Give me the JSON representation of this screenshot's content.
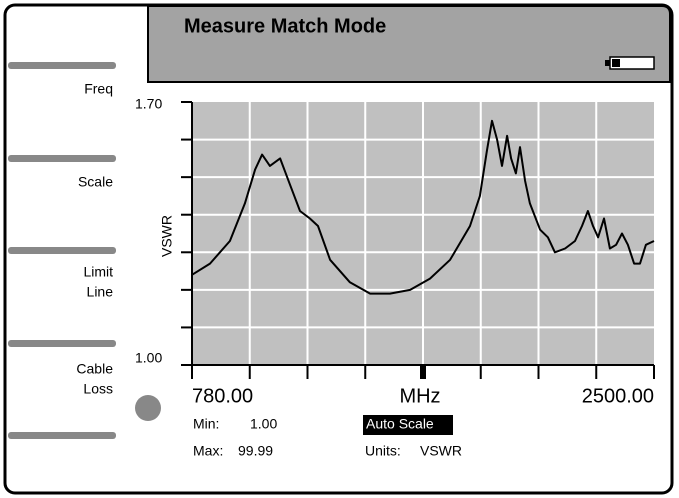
{
  "title": "Measure Match Mode",
  "softkeys": [
    [
      "Freq"
    ],
    [
      "Scale"
    ],
    [
      "Limit",
      "Line"
    ],
    [
      "Cable",
      "Loss"
    ]
  ],
  "chart_data": {
    "type": "line",
    "y_label": "VSWR",
    "x_label": "MHz",
    "xlim": [
      780,
      2500
    ],
    "xticks": [
      {
        "value": 780,
        "label": "780.00"
      },
      {
        "value": 2500,
        "label": "2500.00"
      }
    ],
    "xgrid": [
      995,
      1210,
      1425,
      1640,
      1855,
      2070,
      2285
    ],
    "ylim": [
      1.0,
      1.7
    ],
    "yticks": [
      {
        "value": 1.0,
        "label": "1.00"
      },
      {
        "value": 1.7,
        "label": "1.70"
      }
    ],
    "ygrid": [
      1.1,
      1.2,
      1.3,
      1.4,
      1.5,
      1.6
    ],
    "grid": true,
    "color": "#000000",
    "background": "#c0c0c0",
    "x": [
      780,
      847,
      921,
      977,
      1015,
      1041,
      1070,
      1108,
      1145,
      1182,
      1219,
      1249,
      1294,
      1368,
      1443,
      1517,
      1592,
      1666,
      1741,
      1815,
      1852,
      1878,
      1897,
      1916,
      1934,
      1953,
      1968,
      1986,
      2001,
      2020,
      2038,
      2076,
      2105,
      2131,
      2169,
      2206,
      2232,
      2254,
      2273,
      2292,
      2314,
      2336,
      2359,
      2381,
      2403,
      2426,
      2448,
      2470,
      2500
    ],
    "values": [
      1.24,
      1.27,
      1.33,
      1.43,
      1.52,
      1.56,
      1.53,
      1.55,
      1.48,
      1.41,
      1.39,
      1.37,
      1.28,
      1.22,
      1.19,
      1.19,
      1.2,
      1.23,
      1.28,
      1.37,
      1.45,
      1.57,
      1.65,
      1.6,
      1.53,
      1.61,
      1.55,
      1.51,
      1.58,
      1.49,
      1.43,
      1.36,
      1.34,
      1.3,
      1.31,
      1.33,
      1.37,
      1.41,
      1.37,
      1.34,
      1.39,
      1.31,
      1.32,
      1.35,
      1.32,
      1.27,
      1.27,
      1.32,
      1.33
    ]
  },
  "readout": {
    "min_label": "Min:",
    "min_value": "1.00",
    "max_label": "Max:",
    "max_value": "99.99",
    "mode": "Auto Scale",
    "units_label": "Units:",
    "units_value": "VSWR"
  }
}
